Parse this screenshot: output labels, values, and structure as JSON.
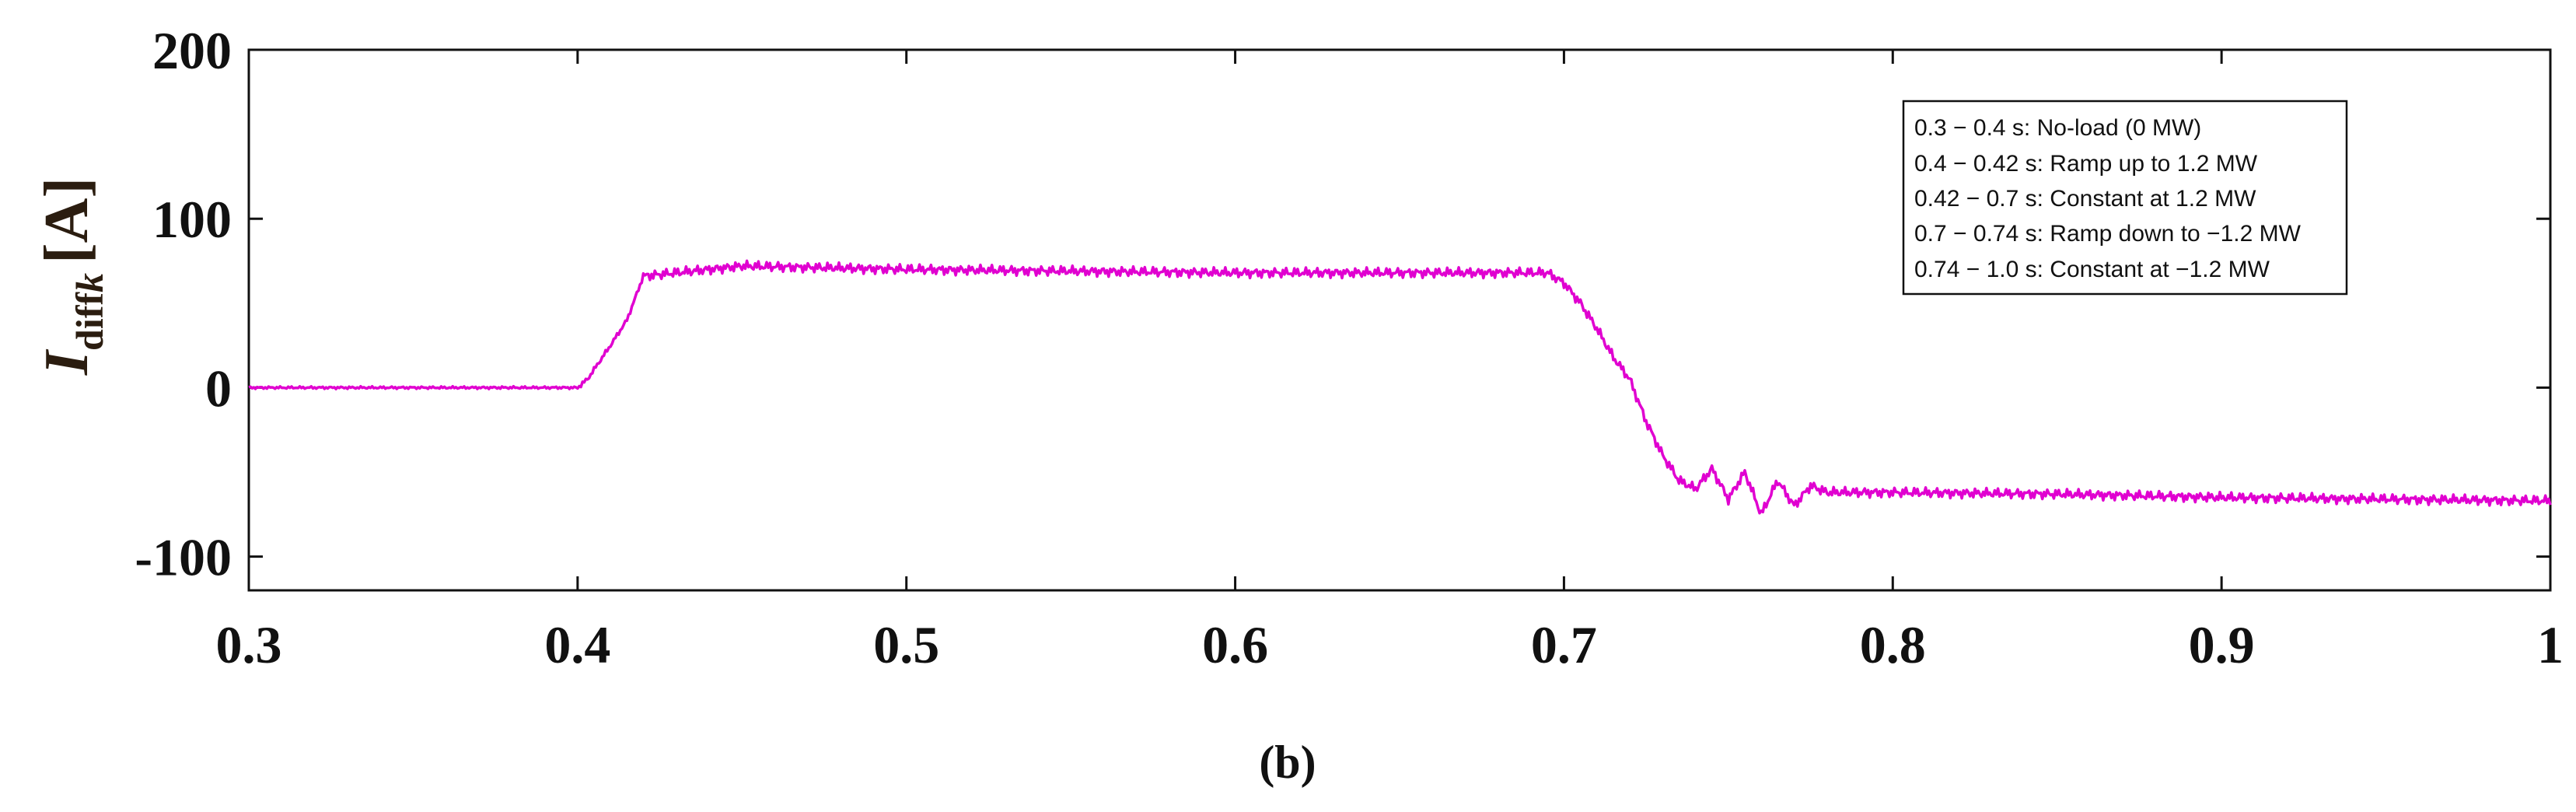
{
  "chart_data": {
    "type": "line",
    "ylabel": {
      "symbol": "I",
      "subscript": "diff",
      "subscript_italic": "k",
      "unit": "[A]"
    },
    "xlabel": "",
    "xlim": [
      0.3,
      1.0
    ],
    "ylim": [
      -120,
      200
    ],
    "xticks": [
      0.3,
      0.4,
      0.5,
      0.6,
      0.7,
      0.8,
      0.9,
      1.0
    ],
    "xtick_labels": [
      "0.3",
      "0.4",
      "0.5",
      "0.6",
      "0.7",
      "0.8",
      "0.9",
      "1"
    ],
    "yticks": [
      -100,
      0,
      100,
      200
    ],
    "ytick_labels": [
      "-100",
      "0",
      "100",
      "200"
    ],
    "grid": false,
    "legend_placement": "top-right",
    "legend": [
      "0.3 − 0.4 s: No-load (0 MW)",
      "0.4 − 0.42 s: Ramp up to 1.2 MW",
      "0.42 − 0.7 s: Constant at 1.2 MW",
      "0.7 − 0.74 s: Ramp down to −1.2 MW",
      "0.74 − 1.0 s: Constant at −1.2 MW"
    ],
    "panel_label": "(b)",
    "series": [
      {
        "color": "#e000d0",
        "x": [
          0.3,
          0.4,
          0.403,
          0.41,
          0.415,
          0.42,
          0.45,
          0.5,
          0.6,
          0.695,
          0.7,
          0.705,
          0.71,
          0.715,
          0.72,
          0.725,
          0.73,
          0.735,
          0.74,
          0.745,
          0.75,
          0.755,
          0.76,
          0.765,
          0.77,
          0.775,
          0.78,
          0.8,
          0.85,
          0.9,
          0.95,
          1.0
        ],
        "values": [
          0,
          0,
          5,
          25,
          40,
          66,
          72,
          70,
          68,
          68,
          62,
          50,
          35,
          18,
          5,
          -20,
          -40,
          -55,
          -60,
          -48,
          -66,
          -50,
          -75,
          -55,
          -70,
          -58,
          -62,
          -62,
          -63,
          -65,
          -66,
          -67
        ]
      }
    ]
  }
}
